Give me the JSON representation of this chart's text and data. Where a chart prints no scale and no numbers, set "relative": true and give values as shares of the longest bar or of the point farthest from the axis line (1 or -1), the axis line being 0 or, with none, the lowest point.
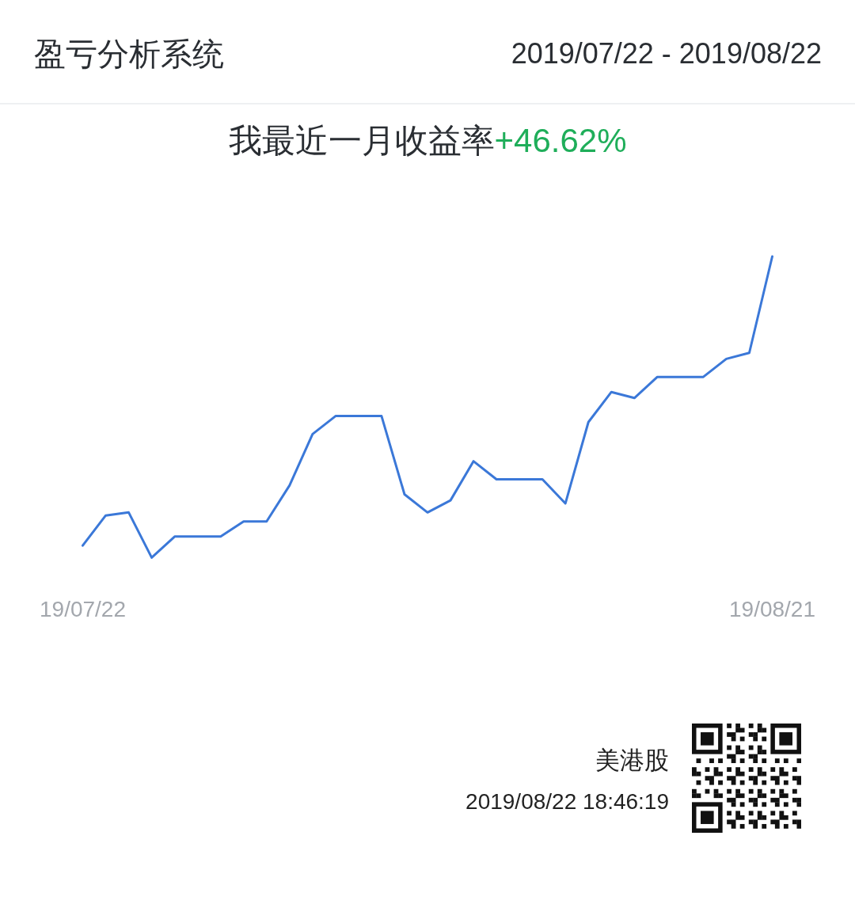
{
  "chart_data": {
    "type": "line",
    "title": "盈亏分析系统",
    "subtitle": "我最近一月收益率+46.62%",
    "annotations": [
      "2019/07/22 - 2019/08/22",
      "美港股",
      "2019/08/22 18:46:19"
    ],
    "categories": [
      "19/07/22",
      null,
      null,
      null,
      null,
      null,
      null,
      null,
      null,
      null,
      null,
      null,
      null,
      null,
      null,
      null,
      null,
      null,
      null,
      null,
      null,
      null,
      null,
      null,
      null,
      null,
      null,
      null,
      null,
      null,
      "19/08/21"
    ],
    "values": [
      0.04,
      0.14,
      0.15,
      0,
      0.07,
      0.07,
      0.07,
      0.12,
      0.12,
      0.24,
      0.41,
      0.47,
      0.47,
      0.47,
      0.21,
      0.15,
      0.19,
      0.32,
      0.26,
      0.26,
      0.26,
      0.18,
      0.45,
      0.55,
      0.53,
      0.6,
      0.6,
      0.6,
      0.66,
      0.68,
      1
    ],
    "color": "#3b78d8",
    "relative": true,
    "tick_labels": "x"
  }
}
